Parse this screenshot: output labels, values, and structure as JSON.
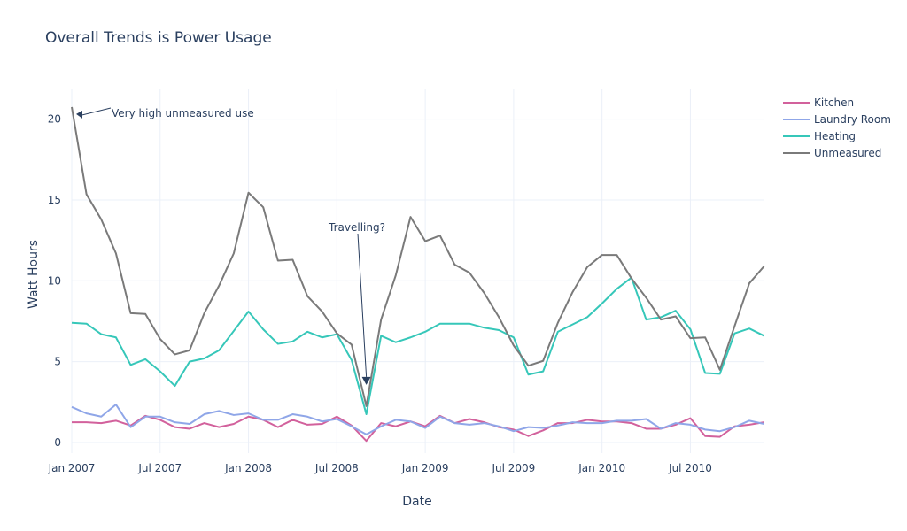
{
  "chart_data": {
    "type": "line",
    "title": "Overall Trends is Power Usage",
    "xlabel": "Date",
    "ylabel": "Watt Hours",
    "x_start": "2007-01",
    "x_ticks": [
      "Jan 2007",
      "Jul 2007",
      "Jan 2008",
      "Jul 2008",
      "Jan 2009",
      "Jul 2009",
      "Jan 2010",
      "Jul 2010"
    ],
    "y_ticks": [
      "0",
      "5",
      "10",
      "15",
      "20"
    ],
    "ylim": [
      -0.5,
      22
    ],
    "grid": true,
    "legend_placement": "top-right",
    "series": [
      {
        "name": "Kitchen",
        "color": "#d2619c",
        "values": [
          1.25,
          1.25,
          1.2,
          1.35,
          1.05,
          1.65,
          1.4,
          0.95,
          0.85,
          1.2,
          0.95,
          1.15,
          1.6,
          1.4,
          0.95,
          1.4,
          1.1,
          1.15,
          1.6,
          1.05,
          0.1,
          1.2,
          1.0,
          1.3,
          1.0,
          1.65,
          1.2,
          1.45,
          1.25,
          0.95,
          0.8,
          0.4,
          0.75,
          1.2,
          1.2,
          1.4,
          1.3,
          1.3,
          1.2,
          0.85,
          0.85,
          1.1,
          1.5,
          0.4,
          0.35,
          1.0,
          1.1,
          1.25
        ]
      },
      {
        "name": "Laundry Room",
        "color": "#8fa6e8",
        "values": [
          2.2,
          1.8,
          1.6,
          2.35,
          0.95,
          1.6,
          1.6,
          1.25,
          1.15,
          1.75,
          1.95,
          1.7,
          1.8,
          1.4,
          1.4,
          1.75,
          1.6,
          1.3,
          1.45,
          1.0,
          0.5,
          1.0,
          1.4,
          1.3,
          0.9,
          1.6,
          1.2,
          1.1,
          1.2,
          1.0,
          0.7,
          0.95,
          0.9,
          1.05,
          1.25,
          1.2,
          1.2,
          1.35,
          1.35,
          1.45,
          0.85,
          1.2,
          1.1,
          0.8,
          0.7,
          0.95,
          1.35,
          1.15
        ]
      },
      {
        "name": "Heating",
        "color": "#36c7b9",
        "values": [
          7.4,
          7.35,
          6.7,
          6.5,
          4.8,
          5.15,
          4.4,
          3.5,
          5.0,
          5.2,
          5.7,
          6.9,
          8.1,
          7.0,
          6.1,
          6.25,
          6.85,
          6.5,
          6.7,
          5.1,
          1.75,
          6.6,
          6.2,
          6.5,
          6.85,
          7.35,
          7.35,
          7.35,
          7.1,
          6.95,
          6.5,
          4.2,
          4.4,
          6.85,
          7.3,
          7.75,
          8.6,
          9.5,
          10.2,
          7.6,
          7.75,
          8.15,
          7.0,
          4.3,
          4.25,
          6.75,
          7.05,
          6.6
        ]
      },
      {
        "name": "Unmeasured",
        "color": "#7a7a7a",
        "values": [
          20.75,
          15.35,
          13.8,
          11.7,
          8.0,
          7.95,
          6.4,
          5.45,
          5.7,
          8.0,
          9.7,
          11.7,
          15.45,
          14.55,
          11.25,
          11.3,
          9.05,
          8.1,
          6.75,
          6.05,
          2.25,
          7.6,
          10.35,
          13.95,
          12.45,
          12.8,
          11.0,
          10.5,
          9.25,
          7.75,
          6.0,
          4.75,
          5.05,
          7.4,
          9.3,
          10.85,
          11.6,
          11.6,
          10.15,
          8.95,
          7.6,
          7.8,
          6.45,
          6.5,
          4.5,
          7.2,
          9.85,
          10.9
        ]
      }
    ],
    "annotations": [
      {
        "text": "Very high unmeasured use",
        "x_index": 0,
        "y": 20.75
      },
      {
        "text": "Travelling?",
        "x_index": 20,
        "y": 2.25
      }
    ]
  }
}
